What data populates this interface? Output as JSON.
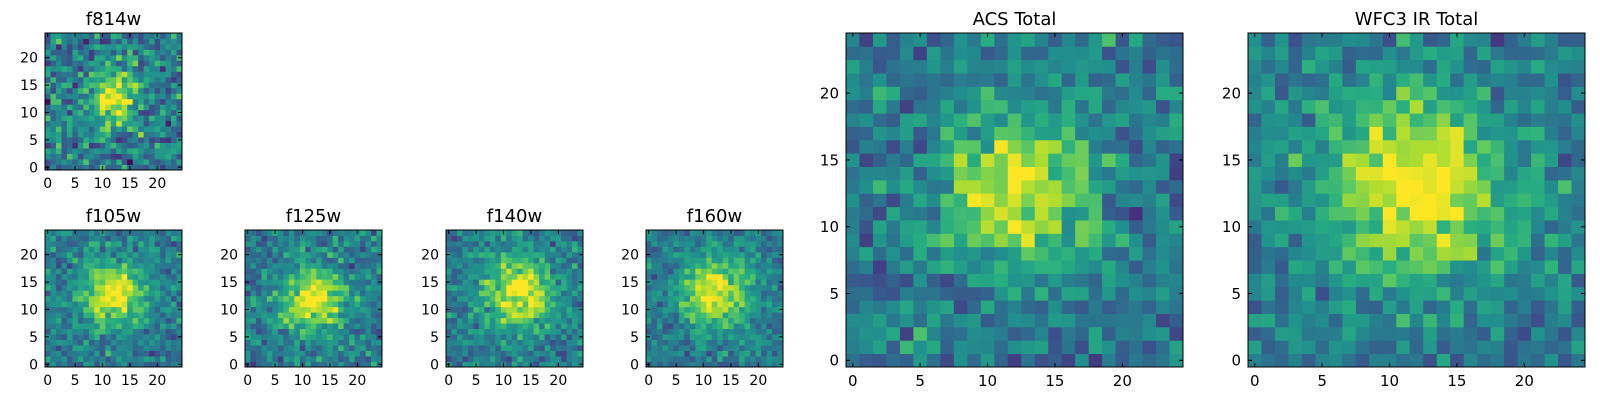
{
  "chart_data": [
    {
      "type": "heatmap",
      "title": "f814w",
      "xticks": [
        "0",
        "5",
        "10",
        "15",
        "20"
      ],
      "yticks": [
        "0",
        "5",
        "10",
        "15",
        "20"
      ],
      "xlim": [
        -0.5,
        24.5
      ],
      "ylim": [
        -0.5,
        24.5
      ],
      "grid_size": 25,
      "colormap": "viridis",
      "source_center": [
        12,
        13
      ],
      "source_width": 3.2,
      "noise_level": 0.3,
      "seed": 11
    },
    {
      "type": "heatmap",
      "title": "f105w",
      "xticks": [
        "0",
        "5",
        "10",
        "15",
        "20"
      ],
      "yticks": [
        "0",
        "5",
        "10",
        "15",
        "20"
      ],
      "xlim": [
        -0.5,
        24.5
      ],
      "ylim": [
        -0.5,
        24.5
      ],
      "grid_size": 25,
      "colormap": "viridis",
      "source_center": [
        12,
        13
      ],
      "source_width": 4.0,
      "noise_level": 0.2,
      "seed": 23
    },
    {
      "type": "heatmap",
      "title": "f125w",
      "xticks": [
        "0",
        "5",
        "10",
        "15",
        "20"
      ],
      "yticks": [
        "0",
        "5",
        "10",
        "15",
        "20"
      ],
      "xlim": [
        -0.5,
        24.5
      ],
      "ylim": [
        -0.5,
        24.5
      ],
      "grid_size": 25,
      "colormap": "viridis",
      "source_center": [
        12,
        12
      ],
      "source_width": 4.0,
      "noise_level": 0.22,
      "seed": 37
    },
    {
      "type": "heatmap",
      "title": "f140w",
      "xticks": [
        "0",
        "5",
        "10",
        "15",
        "20"
      ],
      "yticks": [
        "0",
        "5",
        "10",
        "15",
        "20"
      ],
      "xlim": [
        -0.5,
        24.5
      ],
      "ylim": [
        -0.5,
        24.5
      ],
      "grid_size": 25,
      "colormap": "viridis",
      "source_center": [
        13,
        13
      ],
      "source_width": 4.4,
      "noise_level": 0.2,
      "seed": 41
    },
    {
      "type": "heatmap",
      "title": "f160w",
      "xticks": [
        "0",
        "5",
        "10",
        "15",
        "20"
      ],
      "yticks": [
        "0",
        "5",
        "10",
        "15",
        "20"
      ],
      "xlim": [
        -0.5,
        24.5
      ],
      "ylim": [
        -0.5,
        24.5
      ],
      "grid_size": 25,
      "colormap": "viridis",
      "source_center": [
        12,
        13
      ],
      "source_width": 4.2,
      "noise_level": 0.18,
      "seed": 53
    },
    {
      "type": "heatmap",
      "title": "ACS Total",
      "xticks": [
        "0",
        "5",
        "10",
        "15",
        "20"
      ],
      "yticks": [
        "0",
        "5",
        "10",
        "15",
        "20"
      ],
      "xlim": [
        -0.5,
        24.5
      ],
      "ylim": [
        -0.5,
        24.5
      ],
      "grid_size": 25,
      "colormap": "viridis",
      "source_center": [
        12,
        13
      ],
      "source_width": 3.8,
      "noise_level": 0.22,
      "seed": 67
    },
    {
      "type": "heatmap",
      "title": "WFC3 IR Total",
      "xticks": [
        "0",
        "5",
        "10",
        "15",
        "20"
      ],
      "yticks": [
        "0",
        "5",
        "10",
        "15",
        "20"
      ],
      "xlim": [
        -0.5,
        24.5
      ],
      "ylim": [
        -0.5,
        24.5
      ],
      "grid_size": 25,
      "colormap": "viridis",
      "source_center": [
        12,
        13
      ],
      "source_width": 4.8,
      "noise_level": 0.2,
      "seed": 79
    }
  ]
}
